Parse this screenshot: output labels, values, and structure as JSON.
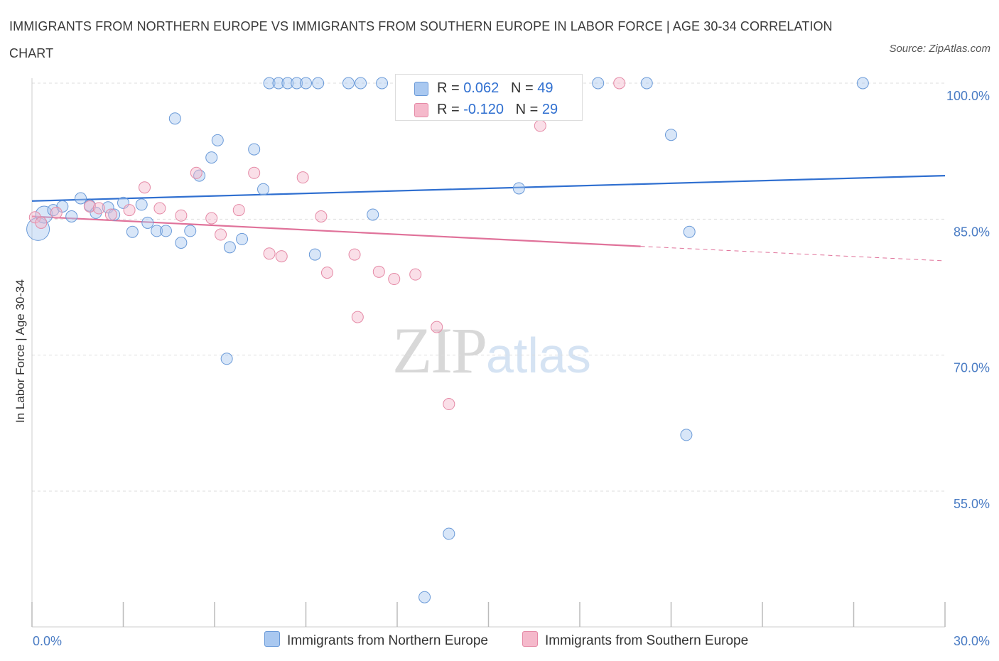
{
  "title": "IMMIGRANTS FROM NORTHERN EUROPE VS IMMIGRANTS FROM SOUTHERN EUROPE IN LABOR FORCE | AGE 30-34 CORRELATION CHART",
  "source": "Source: ZipAtlas.com",
  "watermark": {
    "zip": "ZIP",
    "atlas": "atlas"
  },
  "colors": {
    "blue_fill": "#a9c8f0",
    "blue_stroke": "#6a9ad8",
    "blue_line": "#2f6fd0",
    "pink_fill": "#f5b9cb",
    "pink_stroke": "#e58aa6",
    "pink_line": "#e0729a",
    "tick_text": "#4a7cc4",
    "grid": "#dddddd"
  },
  "legend": {
    "rows": [
      {
        "r_label": "R =",
        "r_value": "0.062",
        "n_label": "N =",
        "n_value": "49"
      },
      {
        "r_label": "R =",
        "r_value": "-0.120",
        "n_label": "N =",
        "n_value": "29"
      }
    ]
  },
  "chart_data": {
    "type": "scatter",
    "title": "IMMIGRANTS FROM NORTHERN EUROPE VS IMMIGRANTS FROM SOUTHERN EUROPE IN LABOR FORCE | AGE 30-34 CORRELATION CHART",
    "xlabel": "",
    "ylabel": "In Labor Force | Age 30-34",
    "xlim": [
      0,
      30
    ],
    "ylim": [
      41,
      101
    ],
    "x_tick_labels": [
      "0.0%",
      "30.0%"
    ],
    "y_ticks": [
      100,
      85,
      70,
      55
    ],
    "y_tick_labels": [
      "100.0%",
      "85.0%",
      "70.0%",
      "55.0%"
    ],
    "grid": true,
    "legend_position": "bottom",
    "series": [
      {
        "name": "Immigrants from Northern Europe",
        "r": 0.062,
        "n": 49,
        "trend": {
          "x": [
            0,
            30
          ],
          "y": [
            87.0,
            89.8
          ]
        },
        "points": [
          {
            "x": 0.2,
            "y": 83.9,
            "s": 2
          },
          {
            "x": 0.4,
            "y": 85.5,
            "s": 1.5
          },
          {
            "x": 0.7,
            "y": 86.0
          },
          {
            "x": 1.0,
            "y": 86.4
          },
          {
            "x": 1.3,
            "y": 85.3
          },
          {
            "x": 1.6,
            "y": 87.3
          },
          {
            "x": 1.9,
            "y": 86.5
          },
          {
            "x": 2.1,
            "y": 85.7
          },
          {
            "x": 2.5,
            "y": 86.3
          },
          {
            "x": 2.7,
            "y": 85.5
          },
          {
            "x": 3.0,
            "y": 86.8
          },
          {
            "x": 3.3,
            "y": 83.6
          },
          {
            "x": 3.6,
            "y": 86.6
          },
          {
            "x": 3.8,
            "y": 84.6
          },
          {
            "x": 4.1,
            "y": 83.7
          },
          {
            "x": 4.4,
            "y": 83.7
          },
          {
            "x": 4.7,
            "y": 96.1
          },
          {
            "x": 4.9,
            "y": 82.4
          },
          {
            "x": 5.2,
            "y": 83.7
          },
          {
            "x": 5.5,
            "y": 89.8
          },
          {
            "x": 5.9,
            "y": 91.8
          },
          {
            "x": 6.1,
            "y": 93.7
          },
          {
            "x": 6.4,
            "y": 69.6
          },
          {
            "x": 6.5,
            "y": 81.9
          },
          {
            "x": 6.9,
            "y": 82.8
          },
          {
            "x": 7.3,
            "y": 92.7
          },
          {
            "x": 7.6,
            "y": 88.3
          },
          {
            "x": 7.8,
            "y": 100
          },
          {
            "x": 8.1,
            "y": 100
          },
          {
            "x": 8.4,
            "y": 100
          },
          {
            "x": 8.7,
            "y": 100
          },
          {
            "x": 9.0,
            "y": 100
          },
          {
            "x": 9.3,
            "y": 81.1
          },
          {
            "x": 9.4,
            "y": 100
          },
          {
            "x": 10.4,
            "y": 100
          },
          {
            "x": 10.8,
            "y": 100
          },
          {
            "x": 11.2,
            "y": 85.5
          },
          {
            "x": 11.5,
            "y": 100
          },
          {
            "x": 12.9,
            "y": 43.3
          },
          {
            "x": 13.5,
            "y": 100
          },
          {
            "x": 13.7,
            "y": 50.3
          },
          {
            "x": 16.0,
            "y": 88.4
          },
          {
            "x": 16.3,
            "y": 100
          },
          {
            "x": 18.6,
            "y": 100
          },
          {
            "x": 20.2,
            "y": 100
          },
          {
            "x": 21.0,
            "y": 94.3
          },
          {
            "x": 21.5,
            "y": 61.2
          },
          {
            "x": 21.6,
            "y": 83.6
          },
          {
            "x": 27.3,
            "y": 100
          }
        ]
      },
      {
        "name": "Immigrants from Southern Europe",
        "r": -0.12,
        "n": 29,
        "trend": {
          "x": [
            0,
            20
          ],
          "y": [
            85.3,
            82.0
          ]
        },
        "trend_dashed": {
          "x": [
            20,
            30
          ],
          "y": [
            82.0,
            80.4
          ]
        },
        "points": [
          {
            "x": 0.1,
            "y": 85.2
          },
          {
            "x": 0.3,
            "y": 84.6
          },
          {
            "x": 0.8,
            "y": 85.7
          },
          {
            "x": 1.9,
            "y": 86.4
          },
          {
            "x": 2.2,
            "y": 86.2
          },
          {
            "x": 2.6,
            "y": 85.5
          },
          {
            "x": 3.2,
            "y": 86.0
          },
          {
            "x": 3.7,
            "y": 88.5
          },
          {
            "x": 4.2,
            "y": 86.2
          },
          {
            "x": 4.9,
            "y": 85.4
          },
          {
            "x": 5.4,
            "y": 90.1
          },
          {
            "x": 5.9,
            "y": 85.1
          },
          {
            "x": 6.2,
            "y": 83.3
          },
          {
            "x": 6.8,
            "y": 86.0
          },
          {
            "x": 7.3,
            "y": 90.1
          },
          {
            "x": 7.8,
            "y": 81.2
          },
          {
            "x": 8.2,
            "y": 80.9
          },
          {
            "x": 8.9,
            "y": 89.6
          },
          {
            "x": 9.5,
            "y": 85.3
          },
          {
            "x": 9.7,
            "y": 79.1
          },
          {
            "x": 10.6,
            "y": 81.1
          },
          {
            "x": 10.7,
            "y": 74.2
          },
          {
            "x": 11.4,
            "y": 79.2
          },
          {
            "x": 11.9,
            "y": 78.4
          },
          {
            "x": 12.6,
            "y": 78.9
          },
          {
            "x": 13.3,
            "y": 73.1
          },
          {
            "x": 13.7,
            "y": 64.6
          },
          {
            "x": 16.7,
            "y": 95.3
          },
          {
            "x": 19.3,
            "y": 100
          }
        ]
      }
    ]
  }
}
